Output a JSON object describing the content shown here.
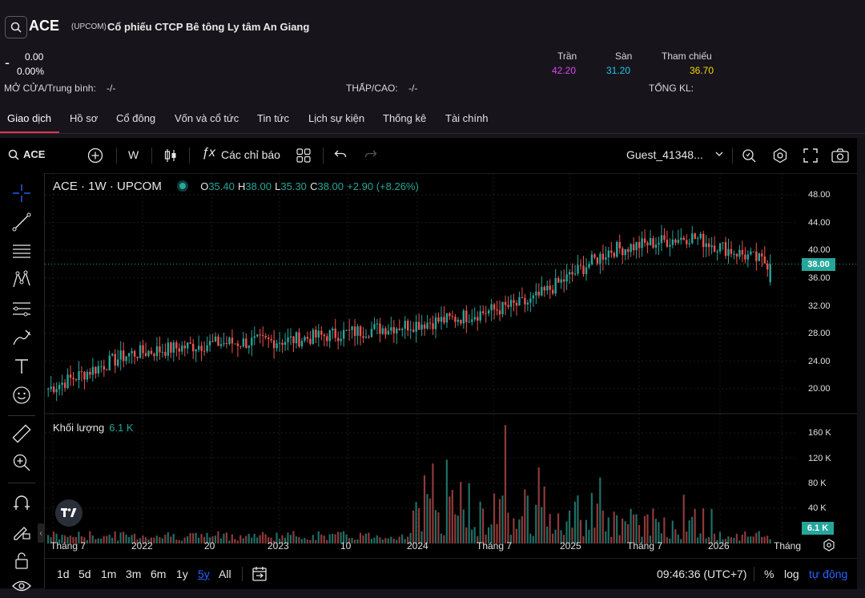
{
  "header": {
    "ticker": "ACE",
    "exchange": "(UPCOM)",
    "company_name": "Cổ phiếu CTCP Bê tông Ly tâm An Giang",
    "change_sign": "-",
    "change": "0.00",
    "change_pct": "0.00%",
    "open_avg_label": "MỞ CỬA/Trung bình:",
    "open_avg_value": "-/-",
    "low_high_label": "THẤP/CAO:",
    "low_high_value": "-/-",
    "total_vol_label": "TỔNG KL:",
    "ceiling_label": "Trần",
    "ceiling_value": "42.20",
    "floor_label": "Sàn",
    "floor_value": "31.20",
    "ref_label": "Tham chiếu",
    "ref_value": "36.70",
    "colors": {
      "ceiling": "#d946ef",
      "floor": "#22c3ee",
      "ref": "#f5d90a"
    }
  },
  "tabs": [
    {
      "label": "Giao dịch",
      "active": true
    },
    {
      "label": "Hồ sơ"
    },
    {
      "label": "Cổ đông"
    },
    {
      "label": "Vốn và cổ tức"
    },
    {
      "label": "Tin tức"
    },
    {
      "label": "Lịch sự kiện"
    },
    {
      "label": "Thống kê"
    },
    {
      "label": "Tài chính"
    }
  ],
  "toolbar": {
    "symbol": "ACE",
    "interval": "W",
    "indicators_label": "Các chỉ báo",
    "user": "Guest_41348..."
  },
  "legend": {
    "title": "ACE · 1W · UPCOM",
    "o_label": "O",
    "o": "35.40",
    "h_label": "H",
    "h": "38.00",
    "l_label": "L",
    "l": "35.30",
    "c_label": "C",
    "c": "38.00",
    "change": "+2.90 (+8.26%)"
  },
  "volume": {
    "label": "Khối lượng",
    "value": "6.1 K"
  },
  "price_axis": [
    "48.00",
    "44.00",
    "40.00",
    "36.00",
    "32.00",
    "28.00",
    "24.00",
    "20.00"
  ],
  "current_price_tag": "38.00",
  "volume_axis": [
    "160 K",
    "120 K",
    "80 K",
    "40 K"
  ],
  "current_volume_tag": "6.1 K",
  "time_axis": [
    "Tháng 7",
    "2022",
    "20",
    "2023",
    "10",
    "2024",
    "Tháng 7",
    "2025",
    "Tháng 7",
    "2026",
    "Tháng"
  ],
  "bottom": {
    "ranges": [
      "1d",
      "5d",
      "1m",
      "3m",
      "6m",
      "1y",
      "5y",
      "All"
    ],
    "selected_range": "5y",
    "clock": "09:46:36 (UTC+7)",
    "pct": "%",
    "log": "log",
    "auto": "tự động"
  },
  "chart_data": {
    "type": "candlestick",
    "title": "ACE · 1W · UPCOM",
    "ylim": [
      18,
      49
    ],
    "volume_ylim": [
      0,
      175000
    ],
    "trend_anchors": [
      {
        "x": "Tháng 7 2021",
        "y": 20.0
      },
      {
        "x": "2022",
        "y": 25.0
      },
      {
        "x": "mid 2022",
        "y": 26.5
      },
      {
        "x": "2023",
        "y": 27.0
      },
      {
        "x": "2024",
        "y": 28.5
      },
      {
        "x": "Tháng 7 2024",
        "y": 30.0
      },
      {
        "x": "2025",
        "y": 32.5
      },
      {
        "x": "Tháng 7 2025",
        "y": 40.0
      },
      {
        "x": "2026",
        "y": 42.0
      },
      {
        "x": "latest",
        "y": 38.0
      }
    ],
    "last_candle": {
      "o": 35.4,
      "h": 38.0,
      "l": 35.3,
      "c": 38.0
    },
    "colors": {
      "up": "#26a69a",
      "down": "#ef5350",
      "vol_up": "#1f6f66",
      "vol_down": "#8f3a3a"
    }
  }
}
